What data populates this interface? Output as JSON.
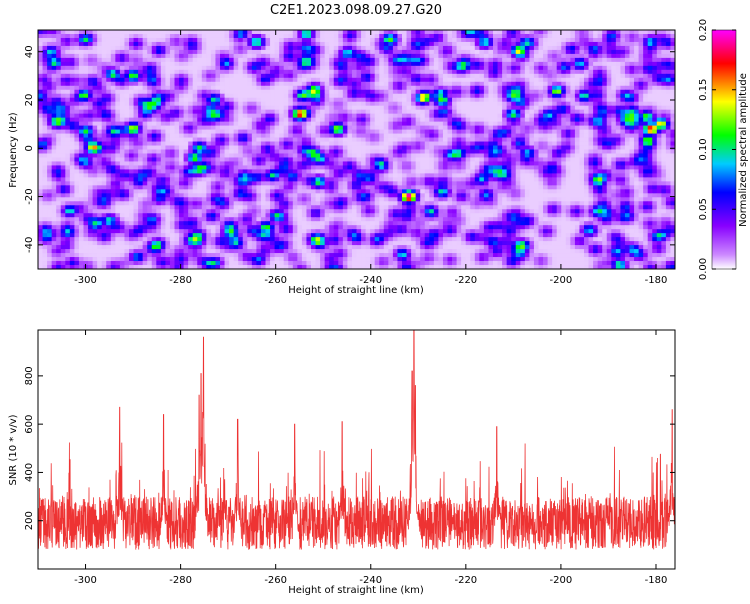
{
  "title": "C2E1.2023.098.09.27.G20",
  "chart_data": [
    {
      "type": "heatmap",
      "xlabel": "Height of straight line (km)",
      "ylabel": "Frequency (Hz)",
      "xlim": [
        -310,
        -176
      ],
      "ylim": [
        -50,
        49
      ],
      "xticks": [
        "-300",
        "-280",
        "-260",
        "-240",
        "-220",
        "-200",
        "-180"
      ],
      "xtick_values": [
        -300,
        -280,
        -260,
        -240,
        -220,
        -200,
        -180
      ],
      "yticks": [
        "40",
        "20",
        "0",
        "-20",
        "-40"
      ],
      "ytick_values": [
        40,
        20,
        0,
        -20,
        -40
      ],
      "colorbar": {
        "label": "Normalized spectral amplitude",
        "range": [
          0,
          0.2
        ],
        "ticks": [
          "0.00",
          "0.05",
          "0.10",
          "0.15",
          "0.20"
        ],
        "tick_values": [
          0,
          0.05,
          0.1,
          0.15,
          0.2
        ],
        "colors": [
          "#ffffff",
          "#cc88ff",
          "#8800ff",
          "#0000ff",
          "#00ccff",
          "#00ff00",
          "#ffff00",
          "#ff0000",
          "#ff00ff"
        ]
      },
      "hotspots": [
        {
          "x": -232,
          "y": -20,
          "value": 0.2
        },
        {
          "x": -181,
          "y": 8,
          "value": 0.18
        },
        {
          "x": -179,
          "y": 10,
          "value": 0.15
        },
        {
          "x": -182,
          "y": 13,
          "value": 0.12
        },
        {
          "x": -277,
          "y": -4,
          "value": 0.12
        },
        {
          "x": -276,
          "y": 0,
          "value": 0.11
        },
        {
          "x": -262,
          "y": -33,
          "value": 0.12
        },
        {
          "x": -247,
          "y": 8,
          "value": 0.13
        },
        {
          "x": -236,
          "y": 45,
          "value": 0.12
        },
        {
          "x": -225,
          "y": 20,
          "value": 0.12
        },
        {
          "x": -290,
          "y": 30,
          "value": 0.12
        },
        {
          "x": -210,
          "y": 14,
          "value": 0.11
        },
        {
          "x": -251,
          "y": -14,
          "value": 0.11
        },
        {
          "x": -300,
          "y": 7,
          "value": 0.11
        },
        {
          "x": -185,
          "y": 15,
          "value": 0.1
        },
        {
          "x": -264,
          "y": 44,
          "value": 0.11
        },
        {
          "x": -225,
          "y": -18,
          "value": 0.1
        },
        {
          "x": -273,
          "y": 20,
          "value": 0.1
        },
        {
          "x": -295,
          "y": -30,
          "value": 0.1
        },
        {
          "x": -194,
          "y": -34,
          "value": 0.09
        },
        {
          "x": -207,
          "y": -2,
          "value": 0.09
        },
        {
          "x": -216,
          "y": 44,
          "value": 0.1
        },
        {
          "x": -284,
          "y": -18,
          "value": 0.09
        },
        {
          "x": -196,
          "y": 35,
          "value": 0.09
        }
      ],
      "background": {
        "min": 0.01,
        "max": 0.07
      }
    },
    {
      "type": "line",
      "xlabel": "Height of straight line (km)",
      "ylabel": "SNR (10 * v/v)",
      "xlim": [
        -310,
        -176
      ],
      "ylim": [
        0,
        990
      ],
      "xticks": [
        "-300",
        "-280",
        "-260",
        "-240",
        "-220",
        "-200",
        "-180"
      ],
      "xtick_values": [
        -300,
        -280,
        -260,
        -240,
        -220,
        -200,
        -180
      ],
      "yticks": [
        "200",
        "400",
        "600",
        "800"
      ],
      "ytick_values": [
        200,
        400,
        600,
        800
      ],
      "series": [
        {
          "color": "#ee3333",
          "baseline_range": [
            20,
            620
          ],
          "peaks": [
            {
              "x": -275.2,
              "y": 960
            },
            {
              "x": -275.7,
              "y": 810
            },
            {
              "x": -276.1,
              "y": 720
            },
            {
              "x": -230.9,
              "y": 990
            },
            {
              "x": -231.3,
              "y": 820
            },
            {
              "x": -230.6,
              "y": 760
            },
            {
              "x": -292.8,
              "y": 670
            },
            {
              "x": -176.6,
              "y": 660
            },
            {
              "x": -283.6,
              "y": 640
            },
            {
              "x": -268.0,
              "y": 620
            },
            {
              "x": -256.0,
              "y": 600
            },
            {
              "x": -213.5,
              "y": 590
            },
            {
              "x": -246.0,
              "y": 610
            }
          ]
        }
      ]
    }
  ]
}
